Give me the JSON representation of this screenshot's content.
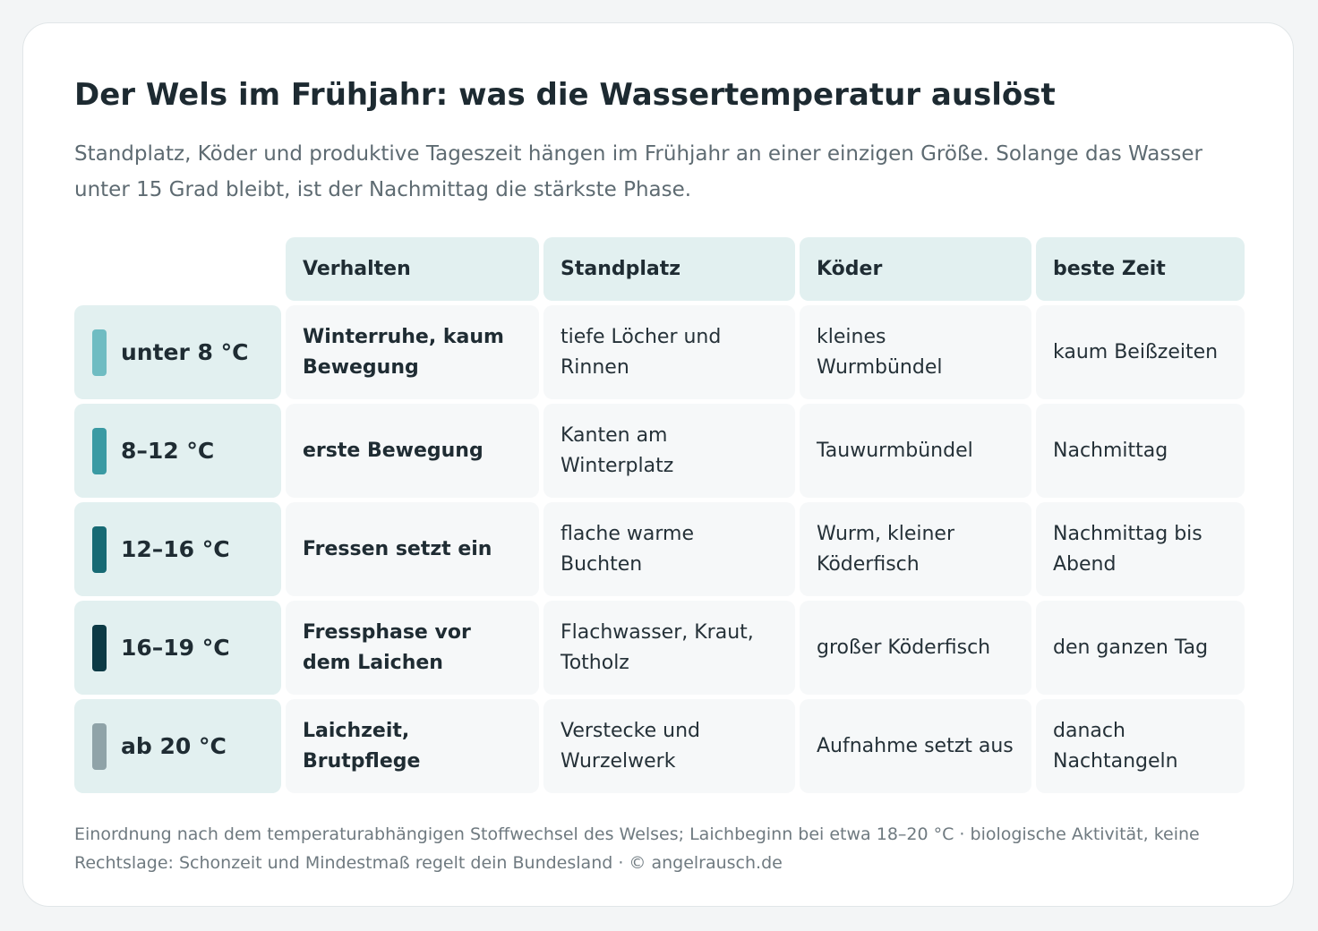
{
  "title": "Der Wels im Frühjahr: was die Wassertemperatur auslöst",
  "subtitle": "Standplatz, Köder und produktive Tageszeit hängen im Frühjahr an einer einzigen Größe. Solange das Wasser unter 15 Grad bleibt, ist der Nachmittag die stärkste Phase.",
  "columns": [
    "Verhalten",
    "Standplatz",
    "Köder",
    "beste Zeit"
  ],
  "rows": [
    {
      "temperature": "unter 8 °C",
      "swatch_color": "#6fbcc2",
      "behavior": "Winterruhe, kaum Bewegung",
      "spot": "tiefe Löcher und Rinnen",
      "bait": "kleines Wurmbündel",
      "time": "kaum Beißzeiten"
    },
    {
      "temperature": "8–12 °C",
      "swatch_color": "#3a9aa3",
      "behavior": "erste Bewegung",
      "spot": "Kanten am Winterplatz",
      "bait": "Tauwurmbündel",
      "time": "Nachmittag"
    },
    {
      "temperature": "12–16 °C",
      "swatch_color": "#176a74",
      "behavior": "Fressen setzt ein",
      "spot": "flache warme Buchten",
      "bait": "Wurm, kleiner Köderfisch",
      "time": "Nachmittag bis Abend"
    },
    {
      "temperature": "16–19 °C",
      "swatch_color": "#0c3a45",
      "behavior": "Fressphase vor dem Laichen",
      "spot": "Flachwasser, Kraut, Totholz",
      "bait": "großer Köderfisch",
      "time": "den ganzen Tag"
    },
    {
      "temperature": "ab 20 °C",
      "swatch_color": "#8fa3a8",
      "behavior": "Laichzeit, Brutpflege",
      "spot": "Verstecke und Wurzelwerk",
      "bait": "Aufnahme setzt aus",
      "time": "danach Nachtangeln"
    }
  ],
  "footer": "Einordnung nach dem temperaturabhängigen Stoffwechsel des Welses; Laichbeginn bei etwa 18–20 °C · biologische Aktivität, keine Rechtslage: Schonzeit und Mindestmaß regelt dein Bundesland · © angelrausch.de"
}
